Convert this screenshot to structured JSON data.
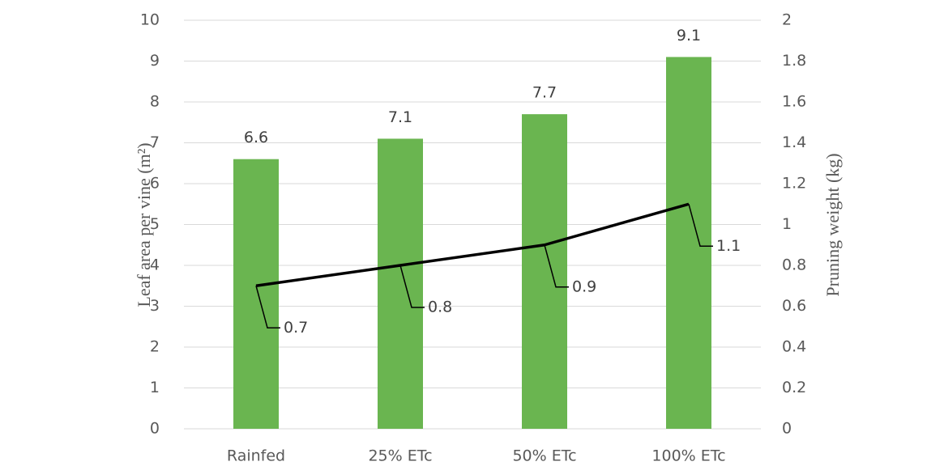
{
  "chart_data": {
    "type": "bar",
    "categories": [
      "Rainfed",
      "25% ETc",
      "50% ETc",
      "100% ETc"
    ],
    "values": [
      6.6,
      7.1,
      7.7,
      9.1
    ],
    "color": "#6ab550",
    "line_values": [
      0.7,
      0.8,
      0.9,
      1.1
    ],
    "line_color": "#000000",
    "line_axis": "y2",
    "y_label": "Leaf area per vine (m²)",
    "y2_label": "Pruning weight (kg)",
    "ylim": [
      0,
      10
    ],
    "yticks": [
      0,
      1,
      2,
      3,
      4,
      5,
      6,
      7,
      8,
      9,
      10
    ],
    "y2lim": [
      0,
      2
    ],
    "y2ticks": [
      0,
      0.2,
      0.4,
      0.6,
      0.8,
      1,
      1.2,
      1.4,
      1.6,
      1.8,
      2
    ],
    "grid": true
  }
}
